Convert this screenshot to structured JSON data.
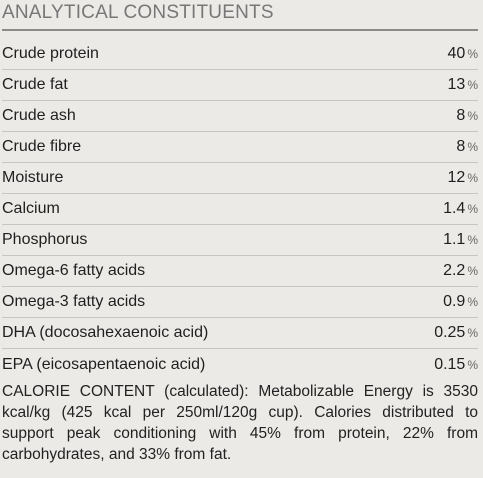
{
  "section": {
    "title": "ANALYTICAL CONSTITUENTS"
  },
  "constituents": [
    {
      "name": "Crude protein",
      "value": "40",
      "unit": "%"
    },
    {
      "name": "Crude fat",
      "value": "13",
      "unit": "%"
    },
    {
      "name": "Crude ash",
      "value": "8",
      "unit": "%"
    },
    {
      "name": "Crude fibre",
      "value": "8",
      "unit": "%"
    },
    {
      "name": "Moisture",
      "value": "12",
      "unit": "%"
    },
    {
      "name": "Calcium",
      "value": "1.4",
      "unit": "%"
    },
    {
      "name": "Phosphorus",
      "value": "1.1",
      "unit": "%"
    },
    {
      "name": "Omega-6 fatty acids",
      "value": "2.2",
      "unit": "%"
    },
    {
      "name": "Omega-3 fatty acids",
      "value": "0.9",
      "unit": "%"
    },
    {
      "name": "DHA (docosahexaenoic acid)",
      "value": "0.25",
      "unit": "%"
    },
    {
      "name": "EPA (eicosapentaenoic acid)",
      "value": "0.15",
      "unit": "%"
    }
  ],
  "calorie_content": "CALORIE CONTENT (calculated): Metabolizable Energy is 3530 kcal/kg (425 kcal per 250ml/120g cup). Calories distributed to support peak conditioning with 45% from protein, 22% from carbohydrates, and 33% from fat."
}
